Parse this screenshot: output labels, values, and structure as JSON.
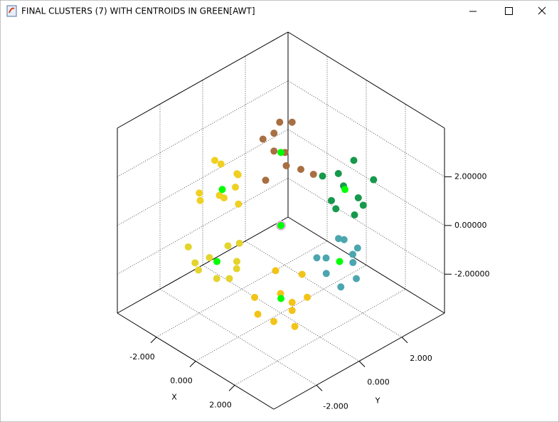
{
  "chart_data": {
    "type": "scatter3d",
    "title": "FINAL CLUSTERS (7) WITH CENTROIDS IN GREEN[AWT]",
    "xlabel": "X",
    "ylabel": "Y",
    "xlim": [
      -4,
      4
    ],
    "ylim": [
      -4,
      4
    ],
    "zlim": [
      -3.6,
      4
    ],
    "xticks": [
      {
        "value": -2,
        "label": "-2.000"
      },
      {
        "value": 0,
        "label": "0.000"
      },
      {
        "value": 2,
        "label": "2.000"
      }
    ],
    "yticks": [
      {
        "value": -2,
        "label": "-2.000"
      },
      {
        "value": 0,
        "label": "0.000"
      },
      {
        "value": 2,
        "label": "2.000"
      }
    ],
    "zticks": [
      {
        "value": 2,
        "label": "2.00000"
      },
      {
        "value": 0,
        "label": "0.00000"
      },
      {
        "value": -2,
        "label": "-2.00000"
      }
    ],
    "grid": true,
    "series": [
      {
        "color": "#a86f42",
        "x": [
          -0.5,
          0.3,
          0.8,
          -0.9,
          0.2,
          -0.3,
          0.6,
          -0.7,
          0.9,
          0.1
        ],
        "y": [
          0.4,
          -0.6,
          0.2,
          0.5,
          -0.9,
          0.8,
          -0.3,
          -0.2,
          0.7,
          0.1
        ],
        "z": [
          3.8,
          3.5,
          2.6,
          3.1,
          2.4,
          3.7,
          2.9,
          3.3,
          2.2,
          3.0
        ]
      },
      {
        "color": "#16994c",
        "x": [
          -0.6,
          0.5,
          0.9,
          -0.2,
          0.3,
          -0.8,
          0.7,
          0.1,
          -0.4,
          0.6
        ],
        "y": [
          2.5,
          3.4,
          2.8,
          3.6,
          2.3,
          3.1,
          3.7,
          2.6,
          3.3,
          2.9
        ],
        "z": [
          0.5,
          -0.6,
          0.2,
          0.8,
          -0.3,
          -0.9,
          0.4,
          0.9,
          -0.2,
          -0.7
        ]
      },
      {
        "color": "#4ba6ae",
        "x": [
          2.4,
          3.5,
          2.8,
          3.7,
          2.6,
          3.2,
          3.9,
          2.2,
          3.3,
          2.9
        ],
        "y": [
          0.5,
          -0.4,
          0.8,
          0.2,
          -0.7,
          0.6,
          -0.2,
          0.1,
          -0.9,
          0.3
        ],
        "z": [
          0.4,
          -0.6,
          -0.2,
          0.8,
          0.3,
          -0.9,
          0.5,
          -0.3,
          0.1,
          0.7
        ]
      },
      {
        "color": "#f2c418",
        "x": [
          -0.6,
          0.4,
          0.8,
          -0.3,
          0.2,
          -0.8,
          0.6,
          0.1,
          -0.2,
          0.9
        ],
        "y": [
          0.3,
          -0.7,
          0.5,
          0.8,
          -0.2,
          -0.5,
          0.1,
          0.9,
          -0.9,
          -0.3
        ],
        "z": [
          -2.3,
          -3.4,
          -2.8,
          -3.7,
          -2.6,
          -3.1,
          -3.9,
          -2.4,
          -3.3,
          -2.9
        ]
      },
      {
        "color": "#f0d020",
        "x": [
          -3.5,
          -2.6,
          -3.2,
          -2.3,
          -3.8,
          -2.9,
          -3.3,
          -2.5,
          -3.6,
          -2.8
        ],
        "y": [
          0.4,
          -0.5,
          0.8,
          0.1,
          -0.3,
          0.6,
          -0.8,
          0.3,
          0.2,
          -0.1
        ],
        "z": [
          0.6,
          0.2,
          -0.4,
          0.9,
          -0.7,
          0.4,
          0.1,
          -0.5,
          0.8,
          -0.2
        ]
      },
      {
        "color": "#e4d42c",
        "x": [
          0.5,
          -0.4,
          0.8,
          -0.7,
          0.2,
          -0.9,
          0.6,
          -0.2,
          0.1,
          0.9
        ],
        "y": [
          -2.4,
          -3.5,
          -2.8,
          -3.7,
          -2.6,
          -3.2,
          -3.9,
          -2.3,
          -3.1,
          -2.9
        ],
        "z": [
          0.7,
          -0.3,
          0.3,
          0.6,
          -0.8,
          -0.4,
          0.9,
          0.2,
          -0.6,
          0.1
        ]
      },
      {
        "color": "#e6b4e0",
        "x": [
          0
        ],
        "y": [
          0
        ],
        "z": [
          0
        ]
      },
      {
        "color": "#00ff00",
        "x": [
          0,
          0,
          3,
          0,
          -3,
          0,
          0
        ],
        "y": [
          0,
          3,
          0,
          0,
          0,
          -3,
          0
        ],
        "z": [
          3,
          0,
          0,
          -3,
          0,
          0,
          0
        ]
      }
    ]
  }
}
